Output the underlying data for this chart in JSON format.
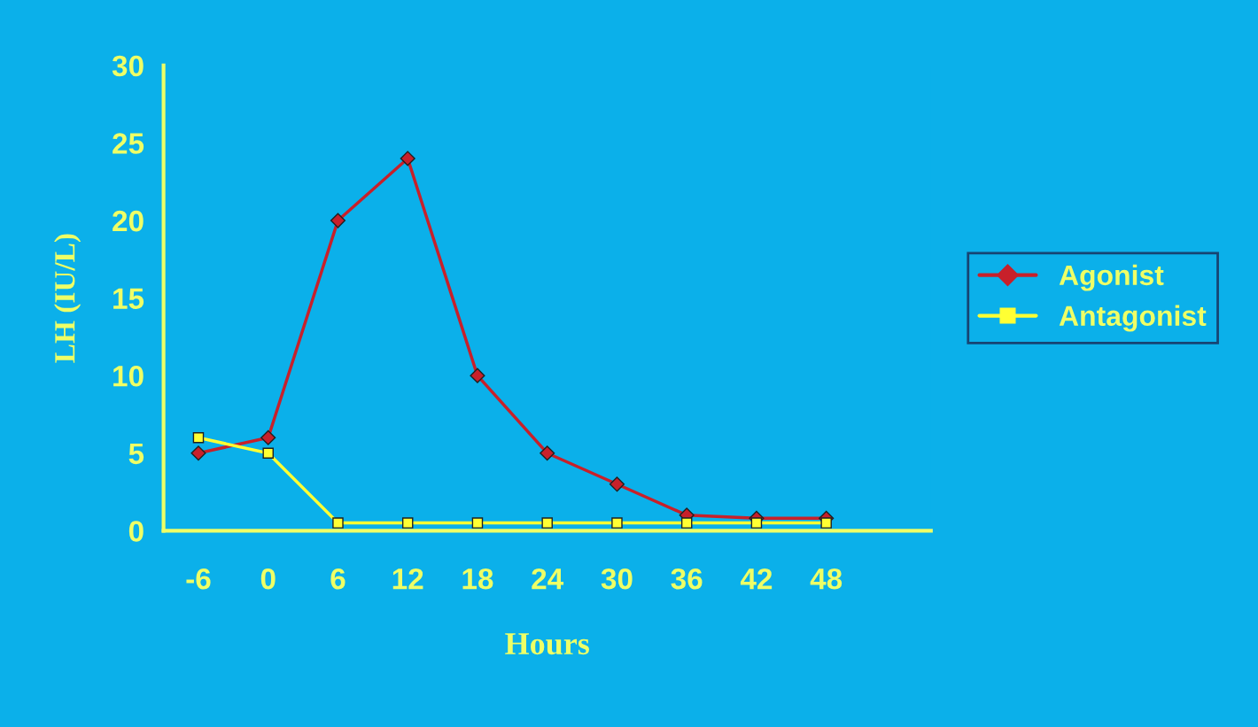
{
  "chart_data": {
    "type": "line",
    "xlabel": "Hours",
    "ylabel": "LH (IU/L)",
    "categories": [
      "-6",
      "0",
      "6",
      "12",
      "18",
      "24",
      "30",
      "36",
      "42",
      "48",
      null
    ],
    "ylim": [
      0,
      30
    ],
    "yticks": [
      0,
      5,
      10,
      15,
      20,
      25,
      30
    ],
    "grid": false,
    "legend": "right",
    "line_style": "solid",
    "series": [
      {
        "name": "Agonist",
        "color": "#c8202a",
        "marker": "diamond",
        "values": [
          5,
          6,
          20,
          24,
          10,
          5,
          3,
          1,
          0.8,
          0.8,
          null
        ]
      },
      {
        "name": "Antagonist",
        "color": "#ffff33",
        "marker": "square",
        "values": [
          6,
          5,
          0.5,
          0.5,
          0.5,
          0.5,
          0.5,
          0.5,
          0.5,
          0.5,
          null
        ]
      }
    ]
  }
}
